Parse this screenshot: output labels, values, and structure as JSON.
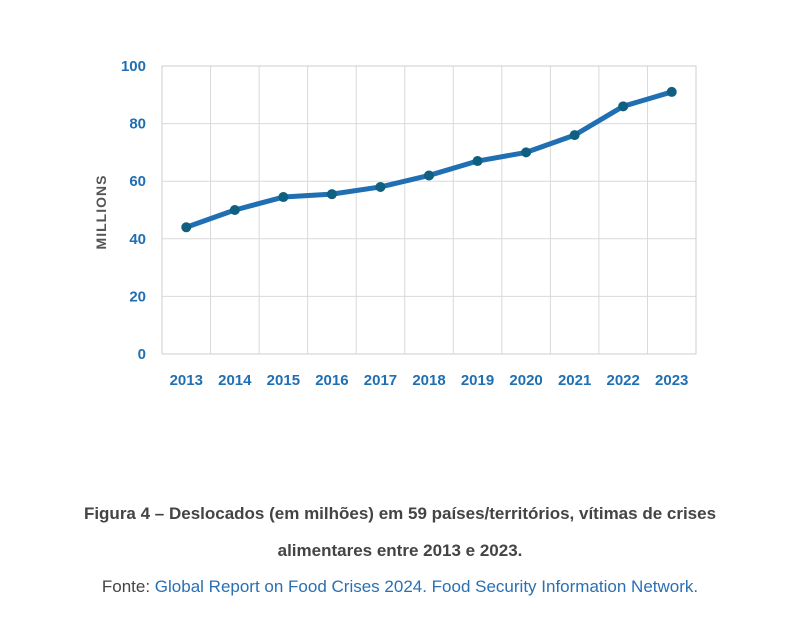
{
  "chart_data": {
    "type": "line",
    "x": [
      "2013",
      "2014",
      "2015",
      "2016",
      "2017",
      "2018",
      "2019",
      "2020",
      "2021",
      "2022",
      "2023"
    ],
    "series": [
      {
        "values": [
          44,
          50,
          54.5,
          55.5,
          58,
          62,
          67,
          70,
          76,
          86,
          91
        ]
      }
    ],
    "ylabel": "MILLIONS",
    "ylim": [
      0,
      100
    ],
    "yticks": [
      "0",
      "20",
      "40",
      "60",
      "80",
      "100"
    ],
    "grid": true,
    "line_color": "#1f6fb2",
    "marker_color": "#0f5f80",
    "tick_color": "#1f6fb2"
  },
  "caption": {
    "line1": "Figura 4 – Deslocados (em milhões) em 59 países/territórios, vítimas de crises",
    "line2": "alimentares entre 2013 e 2023.",
    "source_prefix": "Fonte: ",
    "source_link": "Global Report on Food Crises 2024. Food Security Information Network."
  }
}
